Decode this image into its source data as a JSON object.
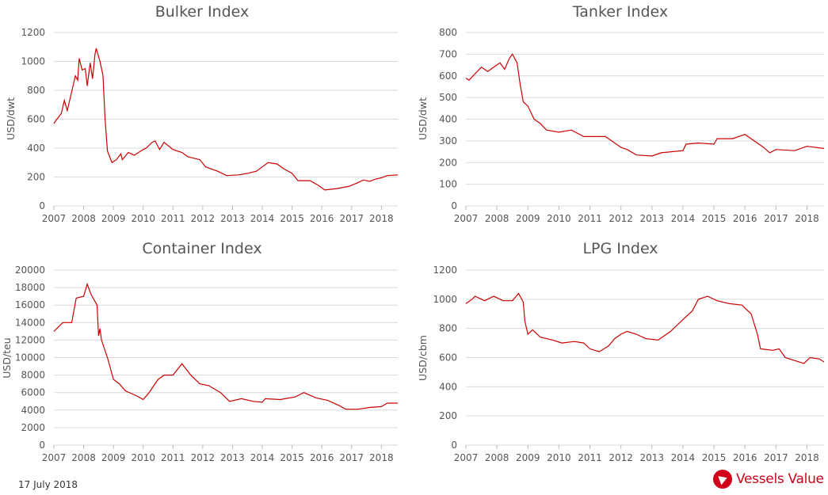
{
  "footer": {
    "date": "17 July 2018",
    "logo_text": "Vessels Value"
  },
  "colors": {
    "line": "#cc0000",
    "grid": "#d9d9d9",
    "brand": "#d0021b"
  },
  "chart_data": [
    {
      "type": "line",
      "title": "Bulker Index",
      "ylabel": "USD/dwt",
      "xlim": [
        2007,
        2018.55
      ],
      "ylim": [
        0,
        1200
      ],
      "yticks": [
        0,
        200,
        400,
        600,
        800,
        1000,
        1200
      ],
      "xticks": [
        2007,
        2008,
        2009,
        2010,
        2011,
        2012,
        2013,
        2014,
        2015,
        2016,
        2017,
        2018
      ],
      "grid": true,
      "points": [
        [
          2007.0,
          570
        ],
        [
          2007.1,
          600
        ],
        [
          2007.25,
          640
        ],
        [
          2007.35,
          730
        ],
        [
          2007.45,
          660
        ],
        [
          2007.6,
          790
        ],
        [
          2007.72,
          900
        ],
        [
          2007.8,
          870
        ],
        [
          2007.85,
          1020
        ],
        [
          2007.95,
          940
        ],
        [
          2008.05,
          950
        ],
        [
          2008.12,
          830
        ],
        [
          2008.22,
          990
        ],
        [
          2008.3,
          880
        ],
        [
          2008.38,
          1050
        ],
        [
          2008.42,
          1090
        ],
        [
          2008.55,
          1000
        ],
        [
          2008.65,
          900
        ],
        [
          2008.72,
          600
        ],
        [
          2008.8,
          380
        ],
        [
          2008.95,
          300
        ],
        [
          2009.1,
          320
        ],
        [
          2009.25,
          360
        ],
        [
          2009.3,
          320
        ],
        [
          2009.5,
          370
        ],
        [
          2009.7,
          350
        ],
        [
          2010.0,
          390
        ],
        [
          2010.1,
          400
        ],
        [
          2010.3,
          440
        ],
        [
          2010.4,
          450
        ],
        [
          2010.55,
          390
        ],
        [
          2010.7,
          440
        ],
        [
          2011.0,
          390
        ],
        [
          2011.3,
          370
        ],
        [
          2011.5,
          340
        ],
        [
          2011.9,
          320
        ],
        [
          2012.1,
          270
        ],
        [
          2012.5,
          240
        ],
        [
          2012.8,
          210
        ],
        [
          2013.2,
          215
        ],
        [
          2013.5,
          225
        ],
        [
          2013.8,
          240
        ],
        [
          2014.0,
          270
        ],
        [
          2014.2,
          300
        ],
        [
          2014.5,
          290
        ],
        [
          2014.7,
          260
        ],
        [
          2015.0,
          225
        ],
        [
          2015.2,
          175
        ],
        [
          2015.6,
          175
        ],
        [
          2015.9,
          140
        ],
        [
          2016.1,
          110
        ],
        [
          2016.5,
          120
        ],
        [
          2016.9,
          135
        ],
        [
          2017.2,
          160
        ],
        [
          2017.4,
          180
        ],
        [
          2017.6,
          170
        ],
        [
          2017.8,
          185
        ],
        [
          2018.0,
          195
        ],
        [
          2018.2,
          210
        ],
        [
          2018.55,
          215
        ]
      ]
    },
    {
      "type": "line",
      "title": "Tanker Index",
      "ylabel": "USD/dwt",
      "xlim": [
        2007,
        2018.55
      ],
      "ylim": [
        0,
        800
      ],
      "yticks": [
        0,
        100,
        200,
        300,
        400,
        500,
        600,
        700,
        800
      ],
      "xticks": [
        2007,
        2008,
        2009,
        2010,
        2011,
        2012,
        2013,
        2014,
        2015,
        2016,
        2017,
        2018
      ],
      "grid": true,
      "points": [
        [
          2007.0,
          590
        ],
        [
          2007.1,
          580
        ],
        [
          2007.3,
          610
        ],
        [
          2007.5,
          640
        ],
        [
          2007.7,
          620
        ],
        [
          2007.9,
          640
        ],
        [
          2008.1,
          660
        ],
        [
          2008.25,
          630
        ],
        [
          2008.4,
          680
        ],
        [
          2008.5,
          700
        ],
        [
          2008.65,
          660
        ],
        [
          2008.75,
          560
        ],
        [
          2008.85,
          480
        ],
        [
          2009.0,
          460
        ],
        [
          2009.2,
          400
        ],
        [
          2009.4,
          380
        ],
        [
          2009.6,
          350
        ],
        [
          2010.0,
          340
        ],
        [
          2010.4,
          350
        ],
        [
          2010.8,
          320
        ],
        [
          2011.5,
          320
        ],
        [
          2012.0,
          270
        ],
        [
          2012.2,
          260
        ],
        [
          2012.5,
          235
        ],
        [
          2013.0,
          230
        ],
        [
          2013.3,
          245
        ],
        [
          2014.0,
          255
        ],
        [
          2014.1,
          285
        ],
        [
          2014.5,
          290
        ],
        [
          2015.0,
          285
        ],
        [
          2015.1,
          310
        ],
        [
          2015.6,
          310
        ],
        [
          2016.0,
          330
        ],
        [
          2016.3,
          300
        ],
        [
          2016.6,
          270
        ],
        [
          2016.8,
          245
        ],
        [
          2017.0,
          260
        ],
        [
          2017.6,
          255
        ],
        [
          2018.0,
          275
        ],
        [
          2018.55,
          265
        ]
      ]
    },
    {
      "type": "line",
      "title": "Container Index",
      "ylabel": "USD/teu",
      "xlim": [
        2007,
        2018.55
      ],
      "ylim": [
        0,
        20000
      ],
      "yticks": [
        0,
        2000,
        4000,
        6000,
        8000,
        10000,
        12000,
        14000,
        16000,
        18000,
        20000
      ],
      "xticks": [
        2007,
        2008,
        2009,
        2010,
        2011,
        2012,
        2013,
        2014,
        2015,
        2016,
        2017,
        2018
      ],
      "grid": true,
      "points": [
        [
          2007.0,
          13000
        ],
        [
          2007.3,
          14000
        ],
        [
          2007.6,
          14000
        ],
        [
          2007.75,
          16800
        ],
        [
          2008.0,
          17000
        ],
        [
          2008.12,
          18400
        ],
        [
          2008.25,
          17200
        ],
        [
          2008.45,
          16000
        ],
        [
          2008.5,
          12500
        ],
        [
          2008.55,
          13300
        ],
        [
          2008.6,
          12000
        ],
        [
          2008.8,
          10000
        ],
        [
          2009.0,
          7500
        ],
        [
          2009.2,
          7000
        ],
        [
          2009.4,
          6200
        ],
        [
          2009.8,
          5600
        ],
        [
          2010.0,
          5200
        ],
        [
          2010.2,
          6000
        ],
        [
          2010.5,
          7500
        ],
        [
          2010.7,
          8000
        ],
        [
          2011.0,
          8000
        ],
        [
          2011.3,
          9300
        ],
        [
          2011.6,
          8000
        ],
        [
          2011.9,
          7000
        ],
        [
          2012.2,
          6800
        ],
        [
          2012.6,
          6000
        ],
        [
          2012.9,
          5000
        ],
        [
          2013.3,
          5300
        ],
        [
          2013.7,
          5000
        ],
        [
          2014.0,
          4900
        ],
        [
          2014.1,
          5300
        ],
        [
          2014.6,
          5200
        ],
        [
          2015.1,
          5500
        ],
        [
          2015.4,
          6000
        ],
        [
          2015.8,
          5400
        ],
        [
          2016.2,
          5100
        ],
        [
          2016.6,
          4500
        ],
        [
          2016.8,
          4100
        ],
        [
          2017.2,
          4100
        ],
        [
          2017.6,
          4300
        ],
        [
          2018.0,
          4400
        ],
        [
          2018.2,
          4800
        ],
        [
          2018.55,
          4800
        ]
      ]
    },
    {
      "type": "line",
      "title": "LPG Index",
      "ylabel": "USD/cbm",
      "xlim": [
        2007,
        2018.55
      ],
      "ylim": [
        0,
        1200
      ],
      "yticks": [
        0,
        200,
        400,
        600,
        800,
        1000,
        1200
      ],
      "xticks": [
        2007,
        2008,
        2009,
        2010,
        2011,
        2012,
        2013,
        2014,
        2015,
        2016,
        2017,
        2018
      ],
      "grid": true,
      "points": [
        [
          2007.0,
          970
        ],
        [
          2007.2,
          1000
        ],
        [
          2007.3,
          1020
        ],
        [
          2007.6,
          990
        ],
        [
          2007.9,
          1020
        ],
        [
          2008.2,
          990
        ],
        [
          2008.5,
          990
        ],
        [
          2008.7,
          1040
        ],
        [
          2008.85,
          980
        ],
        [
          2008.9,
          850
        ],
        [
          2009.0,
          760
        ],
        [
          2009.15,
          790
        ],
        [
          2009.4,
          740
        ],
        [
          2009.8,
          720
        ],
        [
          2010.1,
          700
        ],
        [
          2010.5,
          710
        ],
        [
          2010.8,
          700
        ],
        [
          2011.0,
          660
        ],
        [
          2011.3,
          640
        ],
        [
          2011.6,
          680
        ],
        [
          2011.8,
          730
        ],
        [
          2012.0,
          760
        ],
        [
          2012.2,
          780
        ],
        [
          2012.5,
          760
        ],
        [
          2012.8,
          730
        ],
        [
          2013.2,
          720
        ],
        [
          2013.6,
          780
        ],
        [
          2014.0,
          860
        ],
        [
          2014.3,
          920
        ],
        [
          2014.5,
          1000
        ],
        [
          2014.8,
          1020
        ],
        [
          2015.1,
          990
        ],
        [
          2015.5,
          970
        ],
        [
          2015.9,
          960
        ],
        [
          2016.2,
          900
        ],
        [
          2016.4,
          760
        ],
        [
          2016.5,
          660
        ],
        [
          2016.9,
          650
        ],
        [
          2017.1,
          660
        ],
        [
          2017.3,
          600
        ],
        [
          2017.6,
          580
        ],
        [
          2017.9,
          560
        ],
        [
          2018.1,
          600
        ],
        [
          2018.4,
          590
        ],
        [
          2018.55,
          570
        ]
      ]
    }
  ]
}
